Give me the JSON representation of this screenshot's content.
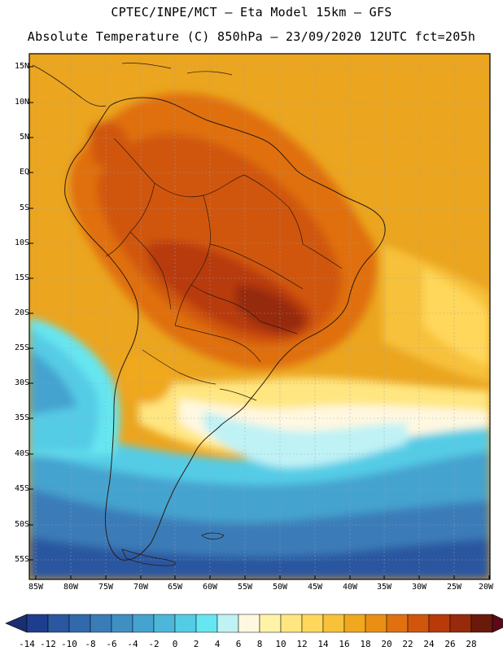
{
  "header": {
    "line1": "CPTEC/INPE/MCT –  Eta Model 15km – GFS",
    "line2": "Absolute Temperature (C) 850hPa – 23/09/2020 12UTC fct=205h"
  },
  "map": {
    "region": "South America",
    "lat_labels": [
      "15N",
      "10N",
      "5N",
      "EQ",
      "5S",
      "10S",
      "15S",
      "20S",
      "25S",
      "30S",
      "35S",
      "40S",
      "45S",
      "50S",
      "55S"
    ],
    "lon_labels": [
      "85W",
      "80W",
      "75W",
      "70W",
      "65W",
      "60W",
      "55W",
      "50W",
      "45W",
      "40W",
      "35W",
      "30W",
      "25W",
      "20W"
    ]
  },
  "colorbar": {
    "labels": [
      "-14",
      "-12",
      "-10",
      "-8",
      "-6",
      "-4",
      "-2",
      "0",
      "2",
      "4",
      "6",
      "8",
      "10",
      "12",
      "14",
      "16",
      "18",
      "20",
      "22",
      "24",
      "26",
      "28"
    ],
    "colors": [
      "#1f3d8f",
      "#2b57a0",
      "#3269ad",
      "#3a7cb8",
      "#3f8fc3",
      "#45a3cf",
      "#4cb7db",
      "#55cce6",
      "#66e6f0",
      "#bff2f5",
      "#fff8e0",
      "#fff3a8",
      "#ffe680",
      "#ffd75a",
      "#f7c13a",
      "#f0a81e",
      "#ea8f14",
      "#e07010",
      "#d0560c",
      "#b83a08",
      "#962a0a",
      "#6a1a0a"
    ],
    "under_color": "#1a2f70",
    "over_color": "#5a0a1a"
  },
  "palette": {
    "frame": "#000000",
    "grid": "#9aa0b4",
    "boundary": "#2a1a10"
  }
}
